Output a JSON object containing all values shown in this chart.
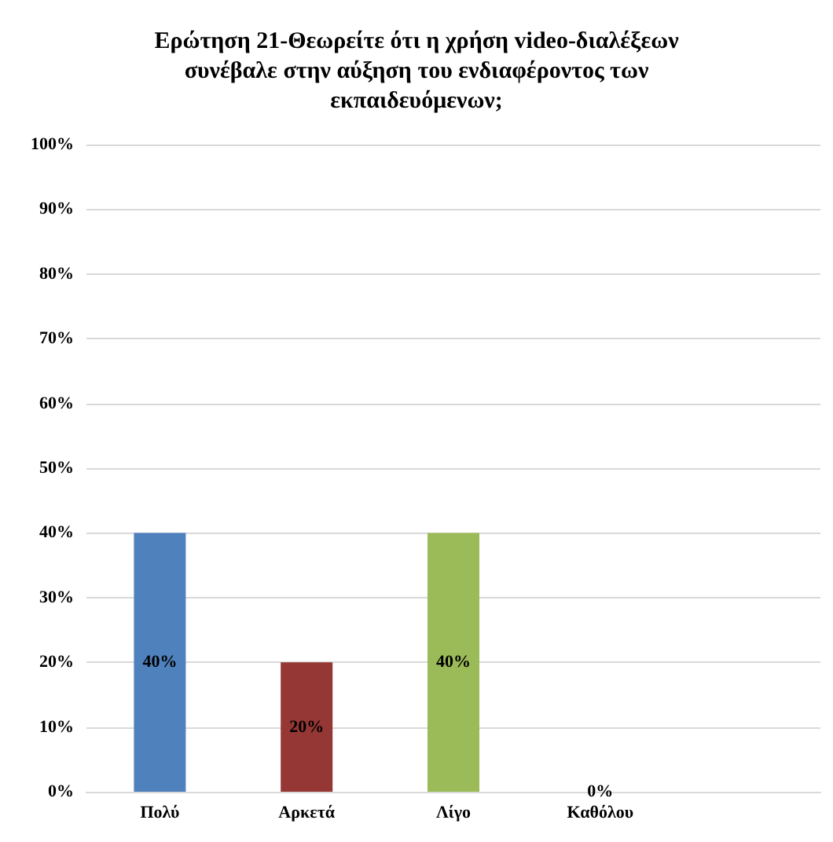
{
  "chart_data": {
    "type": "bar",
    "title": "Ερώτηση 21-Θεωρείτε ότι η χρήση video-διαλέξεων\nσυνέβαλε στην αύξηση του ενδιαφέροντος των\nεκπαιδευόμενων;",
    "categories": [
      "Πολύ",
      "Αρκετά",
      "Λίγο",
      "Καθόλου",
      null
    ],
    "values": [
      40,
      20,
      40,
      0,
      null
    ],
    "colors": [
      "#4f81bd",
      "#953735",
      "#9bbb59",
      "#8064a2",
      "#8064a2"
    ],
    "value_labels": [
      "40%",
      "20%",
      "40%",
      "0%",
      null
    ],
    "ylim": [
      0,
      100
    ],
    "yticks": [
      {
        "value": 0,
        "label": "0%"
      },
      {
        "value": 10,
        "label": "10%"
      },
      {
        "value": 20,
        "label": "20%"
      },
      {
        "value": 30,
        "label": "30%"
      },
      {
        "value": 40,
        "label": "40%"
      },
      {
        "value": 50,
        "label": "50%"
      },
      {
        "value": 60,
        "label": "60%"
      },
      {
        "value": 70,
        "label": "70%"
      },
      {
        "value": 80,
        "label": "80%"
      },
      {
        "value": 90,
        "label": "90%"
      },
      {
        "value": 100,
        "label": "100%"
      }
    ],
    "grid": "y"
  }
}
